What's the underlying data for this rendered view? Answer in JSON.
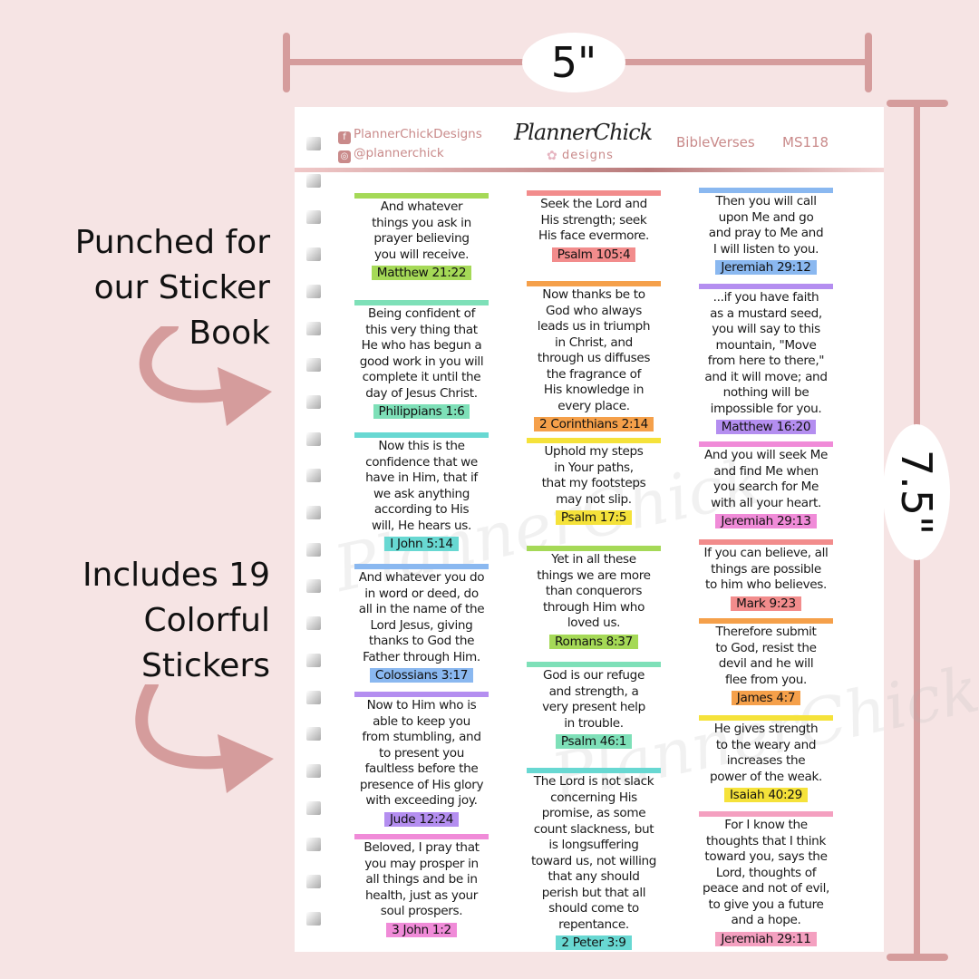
{
  "dimensions": {
    "width_label": "5\"",
    "height_label": "7.5\""
  },
  "callouts": [
    "Punched for\nour Sticker\nBook",
    "Includes 19\nColorful\nStickers"
  ],
  "header": {
    "facebook": "PlannerChickDesigns",
    "instagram": "@plannerchick",
    "logo": "PlannerChick",
    "logo_sub": "designs",
    "collection": "BibleVerses",
    "code": "MS118"
  },
  "colors": {
    "accent": "#d59c9c",
    "green": "#a5d957",
    "mint": "#7ee0b8",
    "teal": "#68d8d2",
    "blue": "#8ab8f0",
    "purple": "#b48ef0",
    "pink": "#f08bd8",
    "salmon": "#f28c8c",
    "orange": "#f5a04a",
    "yellow": "#f5e23a",
    "rose": "#f4a0c0"
  },
  "columns": [
    {
      "stickers": [
        {
          "verse": "And whatever\nthings you ask in\nprayer believing\nyou will receive.",
          "ref": "Matthew 21:22",
          "color": "green"
        },
        {
          "verse": "Being confident of\nthis very thing that\nHe who has begun a\ngood work in you will\ncomplete it until the\nday of Jesus Christ.",
          "ref": "Philippians 1:6",
          "color": "mint"
        },
        {
          "verse": "Now this is the\nconfidence that we\nhave in Him, that if\nwe ask anything\naccording to His\nwill, He hears us.",
          "ref": "I John 5:14",
          "color": "teal"
        },
        {
          "verse": "And whatever you do\nin word or deed, do\nall in the name of the\nLord Jesus, giving\nthanks to God the\nFather through Him.",
          "ref": "Colossians 3:17",
          "color": "blue"
        },
        {
          "verse": "Now to Him who is\nable to keep you\nfrom stumbling, and\nto present you\nfaultless before the\npresence of His glory\nwith exceeding joy.",
          "ref": "Jude 12:24",
          "color": "purple"
        },
        {
          "verse": "Beloved, I pray that\nyou may prosper in\nall things and be in\nhealth, just as your\nsoul prospers.",
          "ref": "3 John 1:2",
          "color": "pink"
        }
      ]
    },
    {
      "stickers": [
        {
          "verse": "Seek the Lord and\nHis strength; seek\nHis face evermore.",
          "ref": "Psalm 105:4",
          "color": "salmon"
        },
        {
          "verse": "Now thanks be to\nGod who always\nleads us in triumph\nin Christ, and\nthrough us diffuses\nthe fragrance of\nHis knowledge in\nevery place.",
          "ref": "2 Corinthians 2:14",
          "color": "orange"
        },
        {
          "verse": "Uphold my steps\nin Your paths,\nthat my footsteps\nmay not slip.",
          "ref": "Psalm 17:5",
          "color": "yellow"
        },
        {
          "verse": "Yet in all these\nthings we are more\nthan conquerors\nthrough Him who\nloved us.",
          "ref": "Romans 8:37",
          "color": "green"
        },
        {
          "verse": "God is our refuge\nand strength, a\nvery present help\nin trouble.",
          "ref": "Psalm 46:1",
          "color": "mint"
        },
        {
          "verse": "The Lord is not slack\nconcerning His\npromise, as some\ncount slackness, but\nis longsuffering\ntoward us, not willing\nthat any should\nperish but that all\nshould come to\nrepentance.",
          "ref": "2 Peter 3:9",
          "color": "teal"
        }
      ]
    },
    {
      "stickers": [
        {
          "verse": "Then you will call\nupon Me and go\nand pray to Me and\nI will listen to you.",
          "ref": "Jeremiah 29:12",
          "color": "blue"
        },
        {
          "verse": "...if you have faith\nas a mustard seed,\nyou will say to this\nmountain, \"Move\nfrom here to there,\"\nand it will move; and\nnothing will be\nimpossible for you.",
          "ref": "Matthew 16:20",
          "color": "purple"
        },
        {
          "verse": "And you will seek Me\nand find Me when\nyou search for Me\nwith all your heart.",
          "ref": "Jeremiah 29:13",
          "color": "pink"
        },
        {
          "verse": "If you can believe, all\nthings are possible\nto him who believes.",
          "ref": "Mark 9:23",
          "color": "salmon"
        },
        {
          "verse": "Therefore submit\nto God, resist the\ndevil and he will\nflee from you.",
          "ref": "James 4:7",
          "color": "orange"
        },
        {
          "verse": "He gives strength\nto the weary and\nincreases the\npower of the weak.",
          "ref": "Isaiah 40:29",
          "color": "yellow"
        },
        {
          "verse": "For I know the\nthoughts that I think\ntoward you, says the\nLord, thoughts of\npeace and not of evil,\nto give you a future\nand a hope.",
          "ref": "Jeremiah 29:11",
          "color": "rose"
        }
      ]
    }
  ]
}
